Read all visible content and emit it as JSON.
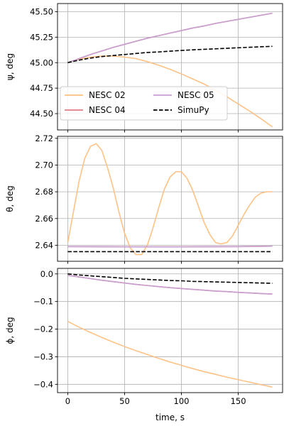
{
  "chart_data": [
    {
      "type": "line",
      "ylabel": "ψ, deg",
      "xlim": [
        -9,
        189
      ],
      "ylim": [
        44.34,
        45.58
      ],
      "xticks": [
        0,
        50,
        100,
        150
      ],
      "yticks": [
        44.5,
        44.75,
        45.0,
        45.25,
        45.5
      ],
      "ytick_labels": [
        "44.50",
        "44.75",
        "45.00",
        "45.25",
        "45.50"
      ],
      "grid": true,
      "legend": {
        "placement": "lower-left",
        "columns": 2,
        "entries": [
          "NESC 02",
          "NESC 04",
          "NESC 05",
          "SimuPy"
        ]
      },
      "series": [
        {
          "name": "NESC 02",
          "color": "#ffbf80",
          "style": "solid",
          "x": [
            0,
            10,
            20,
            30,
            40,
            50,
            60,
            70,
            80,
            90,
            100,
            110,
            120,
            130,
            140,
            150,
            160,
            170,
            180
          ],
          "y": [
            45.0,
            45.035,
            45.055,
            45.065,
            45.065,
            45.055,
            45.04,
            45.01,
            44.975,
            44.935,
            44.89,
            44.84,
            44.79,
            44.73,
            44.665,
            44.595,
            44.525,
            44.45,
            44.37
          ]
        },
        {
          "name": "NESC 04",
          "color": "#e07b86",
          "style": "solid",
          "x": [
            0,
            10,
            20,
            30,
            40,
            50,
            60,
            70,
            80,
            90,
            100,
            110,
            120,
            130,
            140,
            150,
            160,
            170,
            180
          ],
          "y": [
            45.0,
            45.04,
            45.08,
            45.115,
            45.15,
            45.18,
            45.21,
            45.24,
            45.265,
            45.29,
            45.315,
            45.34,
            45.36,
            45.385,
            45.405,
            45.425,
            45.445,
            45.465,
            45.485
          ]
        },
        {
          "name": "NESC 05",
          "color": "#c59fd4",
          "style": "solid",
          "x": [
            0,
            10,
            20,
            30,
            40,
            50,
            60,
            70,
            80,
            90,
            100,
            110,
            120,
            130,
            140,
            150,
            160,
            170,
            180
          ],
          "y": [
            45.0,
            45.04,
            45.08,
            45.115,
            45.15,
            45.18,
            45.21,
            45.24,
            45.265,
            45.29,
            45.315,
            45.34,
            45.36,
            45.385,
            45.405,
            45.425,
            45.445,
            45.465,
            45.485
          ]
        },
        {
          "name": "SimuPy",
          "color": "#000000",
          "style": "dashed",
          "x": [
            0,
            10,
            20,
            30,
            40,
            50,
            60,
            70,
            80,
            90,
            100,
            110,
            120,
            130,
            140,
            150,
            160,
            170,
            180
          ],
          "y": [
            45.0,
            45.025,
            45.045,
            45.06,
            45.07,
            45.08,
            45.09,
            45.1,
            45.105,
            45.113,
            45.12,
            45.126,
            45.131,
            45.136,
            45.141,
            45.146,
            45.151,
            45.156,
            45.16
          ]
        }
      ]
    },
    {
      "type": "line",
      "ylabel": "θ, deg",
      "xlim": [
        -9,
        189
      ],
      "ylim": [
        2.628,
        2.7215
      ],
      "xticks": [
        0,
        50,
        100,
        150
      ],
      "yticks": [
        2.64,
        2.66,
        2.68,
        2.7,
        2.72
      ],
      "ytick_labels": [
        "2.64",
        "2.66",
        "2.68",
        "2.70",
        "2.72"
      ],
      "grid": true,
      "series": [
        {
          "name": "NESC 02",
          "color": "#ffbf80",
          "style": "solid",
          "x": [
            0,
            5,
            10,
            15,
            20,
            25,
            30,
            35,
            40,
            45,
            50,
            55,
            60,
            65,
            70,
            75,
            80,
            85,
            90,
            95,
            100,
            105,
            110,
            115,
            120,
            125,
            130,
            135,
            140,
            145,
            150,
            155,
            160,
            165,
            170,
            175,
            180
          ],
          "y": [
            2.642,
            2.665,
            2.688,
            2.705,
            2.714,
            2.716,
            2.711,
            2.698,
            2.683,
            2.665,
            2.649,
            2.638,
            2.633,
            2.633,
            2.64,
            2.653,
            2.668,
            2.682,
            2.691,
            2.695,
            2.695,
            2.69,
            2.681,
            2.669,
            2.657,
            2.648,
            2.642,
            2.641,
            2.642,
            2.647,
            2.655,
            2.663,
            2.67,
            2.676,
            2.679,
            2.68,
            2.68
          ]
        },
        {
          "name": "NESC 04",
          "color": "#e07b86",
          "style": "solid",
          "x": [
            0,
            50,
            100,
            150,
            180
          ],
          "y": [
            2.639,
            2.6388,
            2.6388,
            2.639,
            2.6393
          ]
        },
        {
          "name": "NESC 05",
          "color": "#c59fd4",
          "style": "solid",
          "x": [
            0,
            50,
            100,
            150,
            180
          ],
          "y": [
            2.639,
            2.6388,
            2.6388,
            2.639,
            2.6393
          ]
        },
        {
          "name": "SimuPy",
          "color": "#000000",
          "style": "dashed",
          "x": [
            0,
            50,
            100,
            150,
            180
          ],
          "y": [
            2.6352,
            2.6352,
            2.6352,
            2.6352,
            2.6352
          ]
        }
      ]
    },
    {
      "type": "line",
      "ylabel": "ϕ, deg",
      "xlabel": "time, s",
      "xlim": [
        -9,
        189
      ],
      "ylim": [
        -0.43,
        0.02
      ],
      "xticks": [
        0,
        50,
        100,
        150
      ],
      "xtick_labels": [
        "0",
        "50",
        "100",
        "150"
      ],
      "yticks": [
        0.0,
        -0.1,
        -0.2,
        -0.3,
        -0.4
      ],
      "ytick_labels": [
        "0.0",
        "−0.1",
        "−0.2",
        "−0.3",
        "−0.4"
      ],
      "grid": true,
      "series": [
        {
          "name": "NESC 02",
          "color": "#ffbf80",
          "style": "solid",
          "x": [
            0,
            10,
            20,
            30,
            40,
            50,
            60,
            70,
            80,
            90,
            100,
            110,
            120,
            130,
            140,
            150,
            160,
            170,
            180
          ],
          "y": [
            -0.172,
            -0.193,
            -0.212,
            -0.23,
            -0.247,
            -0.263,
            -0.278,
            -0.292,
            -0.306,
            -0.319,
            -0.331,
            -0.343,
            -0.354,
            -0.364,
            -0.374,
            -0.383,
            -0.392,
            -0.401,
            -0.41
          ]
        },
        {
          "name": "NESC 04",
          "color": "#e07b86",
          "style": "solid",
          "x": [
            0,
            10,
            20,
            30,
            40,
            50,
            60,
            70,
            80,
            90,
            100,
            110,
            120,
            130,
            140,
            150,
            160,
            170,
            180
          ],
          "y": [
            -0.005,
            -0.011,
            -0.017,
            -0.023,
            -0.028,
            -0.033,
            -0.038,
            -0.042,
            -0.046,
            -0.05,
            -0.053,
            -0.056,
            -0.059,
            -0.062,
            -0.064,
            -0.067,
            -0.069,
            -0.071,
            -0.073
          ]
        },
        {
          "name": "NESC 05",
          "color": "#c59fd4",
          "style": "solid",
          "x": [
            0,
            10,
            20,
            30,
            40,
            50,
            60,
            70,
            80,
            90,
            100,
            110,
            120,
            130,
            140,
            150,
            160,
            170,
            180
          ],
          "y": [
            -0.005,
            -0.011,
            -0.017,
            -0.023,
            -0.028,
            -0.033,
            -0.038,
            -0.042,
            -0.046,
            -0.05,
            -0.053,
            -0.056,
            -0.059,
            -0.062,
            -0.064,
            -0.067,
            -0.069,
            -0.071,
            -0.073
          ]
        },
        {
          "name": "SimuPy",
          "color": "#000000",
          "style": "dashed",
          "x": [
            0,
            10,
            20,
            30,
            40,
            50,
            60,
            70,
            80,
            90,
            100,
            110,
            120,
            130,
            140,
            150,
            160,
            170,
            180
          ],
          "y": [
            0.0,
            -0.004,
            -0.007,
            -0.01,
            -0.013,
            -0.016,
            -0.018,
            -0.02,
            -0.022,
            -0.024,
            -0.025,
            -0.027,
            -0.028,
            -0.029,
            -0.03,
            -0.031,
            -0.032,
            -0.033,
            -0.034
          ]
        }
      ]
    }
  ]
}
